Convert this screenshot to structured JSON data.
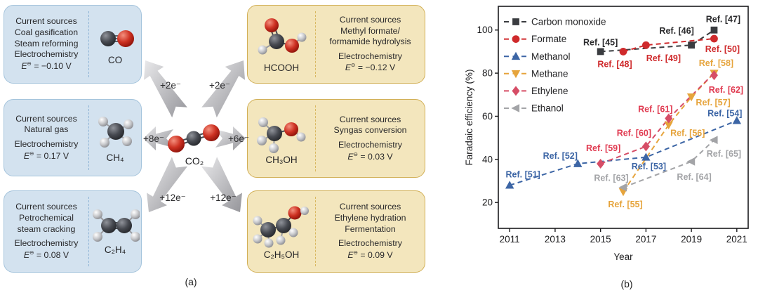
{
  "panel_a": {
    "label": "(a)",
    "center_molecule": {
      "name": "carbon-dioxide",
      "label": "CO₂"
    },
    "electron_transfers": [
      {
        "to": "CO",
        "label": "+2e⁻"
      },
      {
        "to": "HCOOH",
        "label": "+2e⁻"
      },
      {
        "to": "CH₄",
        "label": "+8e⁻"
      },
      {
        "to": "CH₃OH",
        "label": "+6e⁻"
      },
      {
        "to": "C₂H₄",
        "label": "+12e⁻"
      },
      {
        "to": "C₂H₅OH",
        "label": "+12e⁻"
      }
    ],
    "boxes_left": [
      {
        "product": "CO",
        "lines": [
          "Current sources",
          "Coal gasification",
          "Steam reforming",
          "Electrochemistry"
        ],
        "potential": {
          "sym": "E",
          "sup": "⊖",
          "rest": " = −0.10 V"
        }
      },
      {
        "product": "CH₄",
        "lines": [
          "Current sources",
          "Natural gas",
          "",
          "Electrochemistry"
        ],
        "potential": {
          "sym": "E",
          "sup": "⊖",
          "rest": " = 0.17 V"
        }
      },
      {
        "product": "C₂H₄",
        "lines": [
          "Current sources",
          "Petrochemical",
          "steam cracking",
          "",
          "Electrochemistry"
        ],
        "potential": {
          "sym": "E",
          "sup": "⊖",
          "rest": " = 0.08 V"
        }
      }
    ],
    "boxes_right": [
      {
        "product": "HCOOH",
        "lines": [
          "Current sources",
          "Methyl formate/",
          "formamide hydrolysis",
          "",
          "Electrochemistry"
        ],
        "potential": {
          "sym": "E",
          "sup": "⊖",
          "rest": " = −0.12 V"
        }
      },
      {
        "product": "CH₃OH",
        "lines": [
          "Current sources",
          "Syngas conversion",
          "",
          "Electrochemistry"
        ],
        "potential": {
          "sym": "E",
          "sup": "⊖",
          "rest": " = 0.03 V"
        }
      },
      {
        "product": "C₂H₅OH",
        "lines": [
          "Current sources",
          "Ethylene hydration",
          "Fermentation",
          "",
          "Electrochemistry"
        ],
        "potential": {
          "sym": "E",
          "sup": "⊖",
          "rest": " = 0.09 V"
        }
      }
    ]
  },
  "panel_b": {
    "label": "(b)"
  },
  "chart_data": {
    "type": "scatter",
    "title": "",
    "xlabel": "Year",
    "ylabel": "Faradaic efficiency (%)",
    "xlim": [
      2010.5,
      2021.5
    ],
    "ylim": [
      8,
      111
    ],
    "xticks": [
      2011,
      2013,
      2015,
      2017,
      2019,
      2021
    ],
    "yticks": [
      20,
      40,
      60,
      80,
      100
    ],
    "grid": false,
    "legend_position": "top-left",
    "line_style": "dashed",
    "series": [
      {
        "name": "Carbon monoxide",
        "color": "#3a3c40",
        "label_color": "#2a2a2c",
        "marker": "square",
        "points": [
          {
            "year": 2015,
            "value": 90,
            "ref": "Ref. [45]",
            "label_dx": 0,
            "label_dy": -9
          },
          {
            "year": 2019,
            "value": 93,
            "ref": "Ref. [46]",
            "label_dx": -21,
            "label_dy": -16
          },
          {
            "year": 2020,
            "value": 100,
            "ref": "Ref. [47]",
            "label_dx": 13,
            "label_dy": -11
          }
        ]
      },
      {
        "name": "Formate",
        "color": "#cf2a2c",
        "label_color": "#cf2a2c",
        "marker": "circle",
        "points": [
          {
            "year": 2016,
            "value": 90,
            "ref": "Ref. [48]",
            "label_dx": -12,
            "label_dy": 22
          },
          {
            "year": 2017,
            "value": 93,
            "ref": "Ref. [49]",
            "label_dx": 25,
            "label_dy": 23
          },
          {
            "year": 2020,
            "value": 96,
            "ref": "Ref. [50]",
            "label_dx": 12,
            "label_dy": 19
          }
        ]
      },
      {
        "name": "Methanol",
        "color": "#3c65a5",
        "label_color": "#3c65a5",
        "marker": "triangle-up",
        "points": [
          {
            "year": 2011,
            "value": 28,
            "ref": "Ref. [51]",
            "label_dx": 19,
            "label_dy": -11
          },
          {
            "year": 2014,
            "value": 38,
            "ref": "Ref. [52]",
            "label_dx": -25,
            "label_dy": -7
          },
          {
            "year": 2017,
            "value": 41,
            "ref": "Ref. [53]",
            "label_dx": 4,
            "label_dy": 17
          },
          {
            "year": 2021,
            "value": 58,
            "ref": "Ref. [54]",
            "label_dx": -17,
            "label_dy": -6
          }
        ]
      },
      {
        "name": "Methane",
        "color": "#e6a43c",
        "label_color": "#e6a43c",
        "marker": "triangle-down",
        "points": [
          {
            "year": 2016,
            "value": 25,
            "ref": "Ref. [55]",
            "label_dx": 3,
            "label_dy": 22
          },
          {
            "year": 2018,
            "value": 56,
            "ref": "Ref. [56]",
            "label_dx": 27,
            "label_dy": 16
          },
          {
            "year": 2019,
            "value": 69,
            "ref": "Ref. [57]",
            "label_dx": 31,
            "label_dy": 12
          },
          {
            "year": 2020,
            "value": 80,
            "ref": "Ref. [58]",
            "label_dx": 3,
            "label_dy": -10
          }
        ]
      },
      {
        "name": "Ethylene",
        "color": "#d64d66",
        "label_color": "#e03a50",
        "marker": "diamond",
        "points": [
          {
            "year": 2015,
            "value": 38,
            "ref": "Ref. [59]",
            "label_dx": 4,
            "label_dy": -18
          },
          {
            "year": 2017,
            "value": 46,
            "ref": "Ref. [60]",
            "label_dx": -17,
            "label_dy": -15
          },
          {
            "year": 2018,
            "value": 59,
            "ref": "Ref. [61]",
            "label_dx": -19,
            "label_dy": -9
          },
          {
            "year": 2020,
            "value": 80,
            "ref": "Ref. [62]",
            "label_dx": 17,
            "label_dy": 28,
            "oy": 3
          }
        ]
      },
      {
        "name": "Ethanol",
        "color": "#a3a4a7",
        "label_color": "#a3a4a7",
        "marker": "triangle-left",
        "points": [
          {
            "year": 2016,
            "value": 27,
            "ref": "Ref. [63]",
            "label_dx": -17,
            "label_dy": -9
          },
          {
            "year": 2019,
            "value": 39,
            "ref": "Ref. [64]",
            "label_dx": 4,
            "label_dy": 26
          },
          {
            "year": 2020,
            "value": 49,
            "ref": "Ref. [65]",
            "label_dx": 14,
            "label_dy": 24
          }
        ]
      }
    ]
  }
}
